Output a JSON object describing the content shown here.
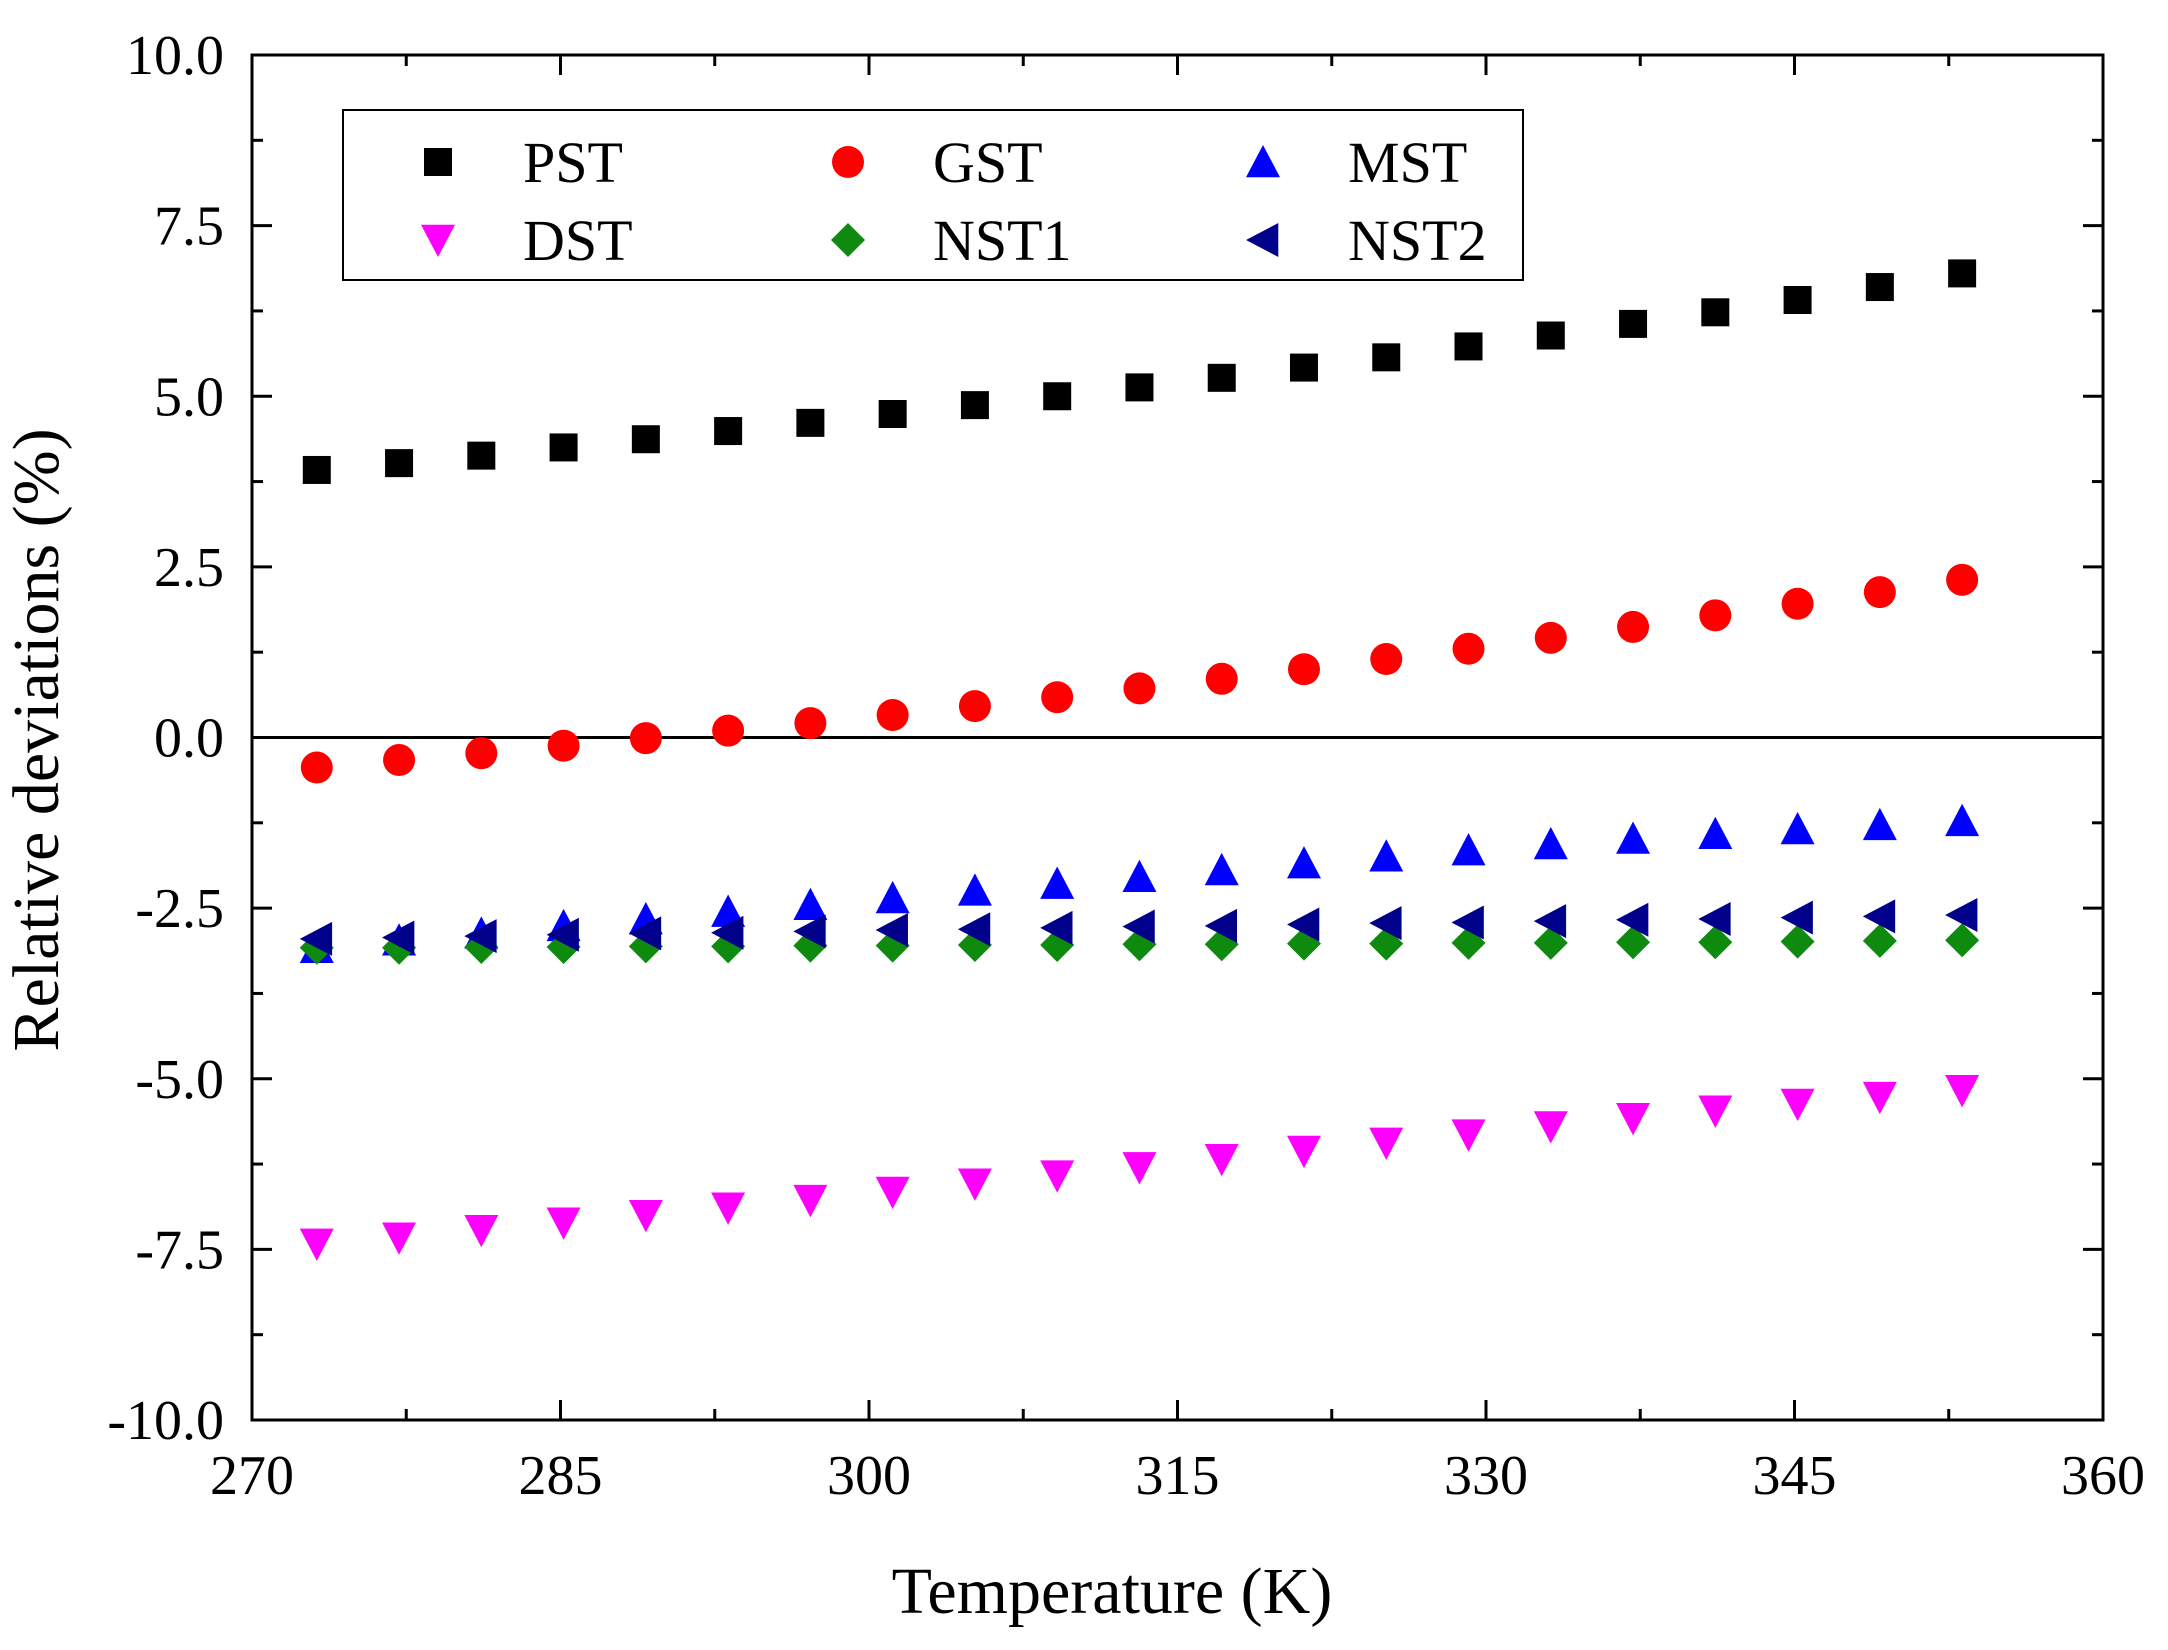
{
  "chart_data": {
    "type": "scatter",
    "title": "",
    "xlabel": "Temperature (K)",
    "ylabel": "Relative deviations (%)",
    "xlim": [
      270,
      360
    ],
    "ylim": [
      -10.0,
      10.0
    ],
    "xticks": [
      270,
      285,
      300,
      315,
      330,
      345,
      360
    ],
    "xtick_labels": [
      "270",
      "285",
      "300",
      "315",
      "330",
      "345",
      "360"
    ],
    "yticks": [
      -10.0,
      -7.5,
      -5.0,
      -2.5,
      0.0,
      2.5,
      5.0,
      7.5,
      10.0
    ],
    "ytick_labels": [
      "-10.0",
      "-7.5",
      "-5.0",
      "-2.5",
      "0.0",
      "2.5",
      "5.0",
      "7.5",
      "10.0"
    ],
    "grid": false,
    "zero_line": 0.0,
    "legend_position": "top-left",
    "x": [
      273.15,
      277.15,
      281.15,
      285.15,
      289.15,
      293.15,
      297.15,
      301.15,
      305.15,
      309.15,
      313.15,
      317.15,
      321.15,
      325.15,
      329.15,
      333.15,
      337.15,
      341.15,
      345.15,
      349.15,
      353.15
    ],
    "series": [
      {
        "name": "PST",
        "marker": "square",
        "color": "#000000",
        "values": [
          3.92,
          4.02,
          4.13,
          4.25,
          4.37,
          4.49,
          4.61,
          4.74,
          4.87,
          5.0,
          5.13,
          5.27,
          5.42,
          5.57,
          5.73,
          5.89,
          6.06,
          6.23,
          6.41,
          6.6,
          6.8
        ]
      },
      {
        "name": "GST",
        "marker": "circle",
        "color": "#ff0000",
        "values": [
          -0.44,
          -0.33,
          -0.23,
          -0.12,
          -0.01,
          0.1,
          0.21,
          0.33,
          0.46,
          0.59,
          0.72,
          0.86,
          1.0,
          1.15,
          1.3,
          1.46,
          1.62,
          1.79,
          1.96,
          2.13,
          2.31
        ]
      },
      {
        "name": "MST",
        "marker": "triangle-up",
        "color": "#0000ff",
        "values": [
          -3.08,
          -2.97,
          -2.87,
          -2.76,
          -2.66,
          -2.55,
          -2.45,
          -2.35,
          -2.24,
          -2.14,
          -2.04,
          -1.94,
          -1.84,
          -1.74,
          -1.65,
          -1.56,
          -1.48,
          -1.41,
          -1.34,
          -1.28,
          -1.22
        ]
      },
      {
        "name": "DST",
        "marker": "triangle-down",
        "color": "#ff00ff",
        "values": [
          -7.42,
          -7.33,
          -7.22,
          -7.11,
          -7.0,
          -6.89,
          -6.78,
          -6.66,
          -6.54,
          -6.42,
          -6.3,
          -6.18,
          -6.06,
          -5.94,
          -5.82,
          -5.7,
          -5.58,
          -5.47,
          -5.37,
          -5.27,
          -5.17
        ]
      },
      {
        "name": "NST1",
        "marker": "diamond",
        "color": "#0e8a0e",
        "values": [
          -3.08,
          -3.08,
          -3.07,
          -3.07,
          -3.06,
          -3.06,
          -3.05,
          -3.05,
          -3.04,
          -3.04,
          -3.03,
          -3.03,
          -3.02,
          -3.02,
          -3.01,
          -3.01,
          -3.0,
          -3.0,
          -2.99,
          -2.98,
          -2.97
        ]
      },
      {
        "name": "NST2",
        "marker": "triangle-left",
        "color": "#00008b",
        "values": [
          -2.95,
          -2.93,
          -2.91,
          -2.89,
          -2.87,
          -2.86,
          -2.84,
          -2.82,
          -2.81,
          -2.79,
          -2.77,
          -2.76,
          -2.74,
          -2.72,
          -2.71,
          -2.69,
          -2.67,
          -2.66,
          -2.64,
          -2.62,
          -2.6
        ]
      }
    ],
    "legend_rows": [
      [
        "PST",
        "GST",
        "MST"
      ],
      [
        "DST",
        "NST1",
        "NST2"
      ]
    ]
  }
}
